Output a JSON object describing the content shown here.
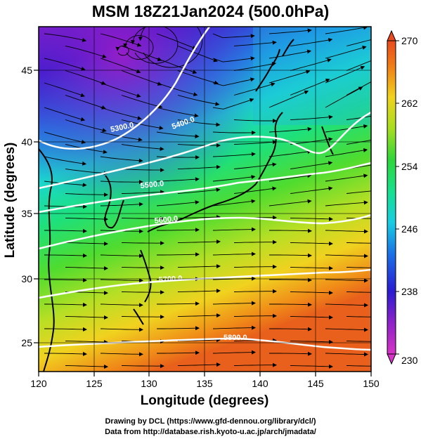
{
  "title": "MSM 18Z21Jan2024 (500.0hPa)",
  "x_axis": {
    "label": "Longitude (degrees)",
    "ticks": [
      "120",
      "125",
      "130",
      "135",
      "140",
      "145",
      "150"
    ]
  },
  "y_axis": {
    "label": "Latitude  (degrees)",
    "ticks": [
      "25",
      "30",
      "35",
      "40",
      "45"
    ]
  },
  "colorbar": {
    "ticks": [
      "270",
      "262",
      "254",
      "246",
      "238",
      "230"
    ],
    "min": 230,
    "max": 270,
    "colors": [
      "#d733c6",
      "#8d22c8",
      "#2a1bd0",
      "#1a71e6",
      "#19cde2",
      "#18e08d",
      "#2fd63b",
      "#a7dd20",
      "#f1d21f",
      "#f07d16",
      "#e84b1e"
    ]
  },
  "contours": [
    {
      "label": "5300.0"
    },
    {
      "label": "5400.0"
    },
    {
      "label": "5500.0"
    },
    {
      "label": "5600.0"
    },
    {
      "label": "5700.0"
    },
    {
      "label": "5800.0"
    }
  ],
  "footer": {
    "line1": "Drawing by DCL (https://www.gfd-dennou.org/library/dcl/)",
    "line2": "Data from http://database.rish.kyoto-u.ac.jp/arch/jmadata/"
  }
}
